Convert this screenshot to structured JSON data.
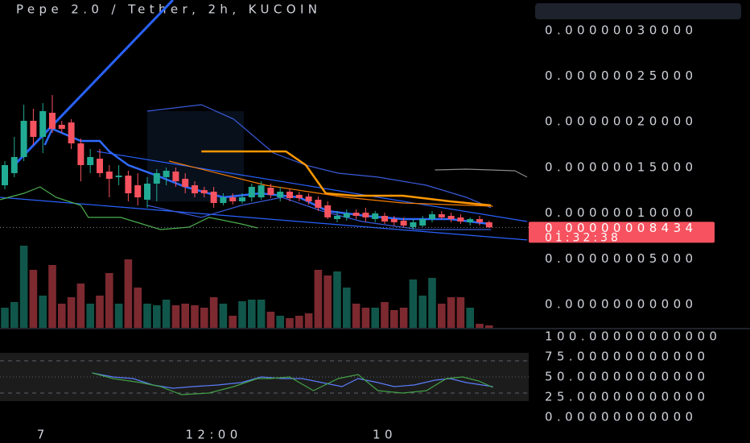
{
  "chart_data": [
    {
      "type": "candlestick",
      "title": "Pepe 2.0 / Tether, 2h, KUCOIN",
      "categories": [
        null,
        null,
        null,
        null,
        "7",
        null,
        null,
        null,
        null,
        null,
        null,
        null,
        null,
        null,
        null,
        null,
        null,
        null,
        null,
        null,
        null,
        null,
        "12:00",
        null,
        null,
        null,
        null,
        null,
        null,
        null,
        null,
        null,
        null,
        null,
        null,
        null,
        null,
        null,
        null,
        null,
        "10",
        null,
        null,
        null,
        null,
        null,
        null,
        null,
        null,
        null,
        null,
        null
      ],
      "open": [
        1.305e-07,
        1.438e-07,
        1.614e-07,
        2.011e-07,
        1.835e-07,
        2.099e-07,
        1.967e-07,
        1.993e-07,
        1.764e-07,
        1.526e-07,
        1.596e-07,
        1.455e-07,
        1.394e-07,
        1.411e-07,
        1.305e-07,
        1.147e-07,
        1.323e-07,
        1.394e-07,
        1.455e-07,
        1.376e-07,
        1.305e-07,
        1.252e-07,
        1.235e-07,
        1.111e-07,
        1.173e-07,
        1.129e-07,
        1.173e-07,
        1.173e-07,
        1.279e-07,
        1.173e-07,
        1.235e-07,
        1.2e-07,
        1.182e-07,
        1.147e-07,
        1.085e-07,
        9.35e-08,
        9.53e-08,
        1.005e-07,
        1.005e-07,
        9.35e-08,
        9.7e-08,
        9.35e-08,
        9.17e-08,
        8.47e-08,
        8.64e-08,
        9.35e-08,
        9.88e-08,
        9.7e-08,
        9.53e-08,
        9e-08,
        9.35e-08,
        9e-08
      ],
      "high": [
        1.57e-07,
        1.835e-07,
        2.187e-07,
        2.143e-07,
        2.205e-07,
        2.293e-07,
        2.011e-07,
        2.029e-07,
        1.817e-07,
        1.702e-07,
        1.702e-07,
        1.526e-07,
        1.526e-07,
        1.464e-07,
        1.438e-07,
        1.394e-07,
        1.482e-07,
        1.499e-07,
        1.499e-07,
        1.438e-07,
        1.349e-07,
        1.288e-07,
        1.288e-07,
        1.217e-07,
        1.217e-07,
        1.217e-07,
        1.323e-07,
        1.349e-07,
        1.323e-07,
        1.288e-07,
        1.27e-07,
        1.235e-07,
        1.217e-07,
        1.182e-07,
        1.129e-07,
        1.023e-07,
        1.041e-07,
        1.041e-07,
        1.058e-07,
        1.023e-07,
        1.005e-07,
        9.7e-08,
        9.53e-08,
        9.35e-08,
        9.7e-08,
        1.023e-07,
        1.023e-07,
        1.005e-07,
        9.88e-08,
        9.53e-08,
        9.7e-08,
        9.17e-08
      ],
      "low": [
        1.261e-07,
        1.394e-07,
        1.57e-07,
        1.746e-07,
        1.658e-07,
        1.879e-07,
        1.879e-07,
        1.702e-07,
        1.349e-07,
        1.438e-07,
        1.394e-07,
        1.173e-07,
        1.305e-07,
        1.129e-07,
        1.085e-07,
        1.058e-07,
        1.129e-07,
        1.305e-07,
        1.288e-07,
        1.217e-07,
        1.173e-07,
        1.173e-07,
        1.058e-07,
        1.085e-07,
        1.094e-07,
        1.103e-07,
        1.129e-07,
        1.147e-07,
        1.164e-07,
        1.129e-07,
        1.129e-07,
        1.129e-07,
        1.094e-07,
        1.023e-07,
        9.35e-08,
        9e-08,
        9.17e-08,
        9.35e-08,
        9.08e-08,
        9e-08,
        8.82e-08,
        8.64e-08,
        8.47e-08,
        8.2e-08,
        8.47e-08,
        9e-08,
        9.35e-08,
        9e-08,
        8.82e-08,
        8.64e-08,
        8.64e-08,
        8.38e-08
      ],
      "close": [
        1.526e-07,
        1.614e-07,
        2.011e-07,
        1.835e-07,
        2.117e-07,
        1.923e-07,
        1.923e-07,
        1.764e-07,
        1.526e-07,
        1.614e-07,
        1.438e-07,
        1.376e-07,
        1.411e-07,
        1.217e-07,
        1.173e-07,
        1.323e-07,
        1.438e-07,
        1.464e-07,
        1.349e-07,
        1.288e-07,
        1.217e-07,
        1.217e-07,
        1.111e-07,
        1.173e-07,
        1.129e-07,
        1.173e-07,
        1.288e-07,
        1.305e-07,
        1.2e-07,
        1.235e-07,
        1.164e-07,
        1.164e-07,
        1.129e-07,
        1.058e-07,
        9.53e-08,
        9.7e-08,
        9.97e-08,
        9.7e-08,
        9.53e-08,
        9.97e-08,
        9.08e-08,
        9e-08,
        8.64e-08,
        9e-08,
        9.35e-08,
        9.88e-08,
        9.53e-08,
        9.35e-08,
        9.08e-08,
        9.35e-08,
        9e-08,
        8.434e-08
      ],
      "volume": [
        25,
        32,
        102,
        72,
        40,
        78,
        30,
        38,
        55,
        30,
        40,
        68,
        30,
        85,
        50,
        30,
        28,
        35,
        28,
        30,
        28,
        25,
        38,
        30,
        15,
        33,
        35,
        35,
        20,
        15,
        12,
        15,
        18,
        72,
        65,
        70,
        50,
        30,
        25,
        25,
        32,
        22,
        25,
        60,
        40,
        62,
        30,
        38,
        38,
        25,
        5,
        3
      ],
      "up_color": "#22ab94",
      "down_color": "#f7525f",
      "ylim": [
        -2.56e-08,
        3.334e-07
      ],
      "yticks": [
        {
          "value": 3e-07,
          "label": "0.00000030000"
        },
        {
          "value": 2.5e-07,
          "label": "0.00000025000"
        },
        {
          "value": 2e-07,
          "label": "0.00000020000"
        },
        {
          "value": 1.5e-07,
          "label": "0.00000015000"
        },
        {
          "value": 1e-07,
          "label": "0.00000010000"
        },
        {
          "value": 5e-08,
          "label": "0.00000005000"
        },
        {
          "value": 0,
          "label": "0.00000000000"
        }
      ],
      "grid": false,
      "overlays": [
        {
          "color": "#2962ff",
          "width": 3,
          "x": [
            1,
            17.7
          ],
          "values": [
            1.526e-07,
            3.334e-07
          ]
        },
        {
          "color": "#2f6bff",
          "width": 2.5,
          "x": [
            4.2,
            5,
            8,
            10,
            11,
            13,
            16,
            19,
            23,
            26.9,
            31,
            34,
            38,
            41.9,
            46.9,
            51
          ],
          "values": [
            1.746e-07,
            1.923e-07,
            1.79e-07,
            1.79e-07,
            1.676e-07,
            1.526e-07,
            1.411e-07,
            1.288e-07,
            1.173e-07,
            1.217e-07,
            1.173e-07,
            1.023e-07,
            9.7e-08,
            9.35e-08,
            9.35e-08,
            8.82e-08
          ]
        },
        {
          "color": "#3a5bd9",
          "width": 1.2,
          "x": [
            15,
            20.7,
            24.1,
            28.3,
            31.7,
            35.1,
            39.3,
            44.4,
            48.6,
            51.2
          ],
          "values": [
            2.117e-07,
            2.187e-07,
            2.029e-07,
            1.658e-07,
            1.526e-07,
            1.438e-07,
            1.394e-07,
            1.305e-07,
            1.173e-07,
            1.058e-07
          ]
        },
        {
          "color": "#2962ff",
          "width": 1.2,
          "x": [
            -0.5,
            55
          ],
          "values": [
            1.173e-07,
            7.06e-08
          ]
        },
        {
          "color": "#2962ff",
          "width": 1.2,
          "x": [
            9.7,
            55
          ],
          "values": [
            1.676e-07,
            9.08e-08
          ]
        },
        {
          "color": "#3a5bd9",
          "width": 1.2,
          "x": [
            15,
            20.7,
            24.9,
            29.2,
            33.4,
            37.6,
            43.6,
            51.2
          ],
          "values": [
            1.085e-07,
            9.53e-08,
            1.085e-07,
            1.173e-07,
            1.023e-07,
            9.08e-08,
            8.2e-08,
            8.2e-08
          ]
        },
        {
          "color": "#ff9800",
          "width": 2.5,
          "x": [
            20.7,
            29.6,
            31.7,
            33.8,
            36.8,
            41.9,
            46.9,
            51.2
          ],
          "values": [
            1.676e-07,
            1.676e-07,
            1.526e-07,
            1.217e-07,
            1.191e-07,
            1.191e-07,
            1.129e-07,
            1.085e-07
          ]
        },
        {
          "color": "#f57c00",
          "width": 1.2,
          "x": [
            17.3,
            27.5,
            35.9,
            41.9,
            51.4
          ],
          "values": [
            1.57e-07,
            1.305e-07,
            1.173e-07,
            1.111e-07,
            1.076e-07
          ]
        },
        {
          "color": "#4caf50",
          "width": 1.2,
          "x": [
            -0.5,
            2,
            3.7,
            5.4,
            8,
            8.8,
            12.2,
            16.4,
            19.4,
            21.5,
            24.9,
            26.6
          ],
          "values": [
            1.147e-07,
            1.217e-07,
            1.288e-07,
            1.173e-07,
            1.085e-07,
            9.53e-08,
            9.53e-08,
            8.2e-08,
            8.47e-08,
            9.53e-08,
            8.82e-08,
            8.38e-08
          ]
        },
        {
          "color": "#8a8a8a",
          "width": 1.2,
          "x": [
            45.3,
            48.6,
            53.7,
            55
          ],
          "values": [
            1.473e-07,
            1.482e-07,
            1.464e-07,
            1.394e-07
          ]
        }
      ],
      "price_tag": {
        "value": 8.434e-08,
        "label": "0.00000008434",
        "countdown": "01:32:38",
        "color": "#f7525f"
      }
    },
    {
      "type": "line",
      "ylim": [
        -10,
        108
      ],
      "yticks": [
        {
          "value": 100,
          "label": "100.00000000000"
        },
        {
          "value": 75,
          "label": "75.00000000000"
        },
        {
          "value": 50,
          "label": "50.00000000000"
        },
        {
          "value": 25,
          "label": "25.00000000000"
        },
        {
          "value": 0,
          "label": "0.00000000000"
        }
      ],
      "band": [
        20,
        80
      ],
      "levels": [
        70,
        50,
        30
      ],
      "series": [
        {
          "color": "#5b7cfa",
          "x": [
            9.2,
            11.4,
            13.5,
            15.6,
            17.7,
            19.8,
            22.4,
            24.9,
            27,
            29.2,
            31.3,
            33.4,
            35.5,
            37.2,
            39.3,
            41,
            43.1,
            45.3,
            46.9,
            48.6,
            50.3,
            51.4
          ],
          "values": [
            55,
            50,
            48,
            40,
            36,
            38,
            40,
            43,
            50,
            48,
            48,
            43,
            38,
            48,
            43,
            38,
            40,
            46,
            48,
            43,
            40,
            38
          ]
        },
        {
          "color": "#43a047",
          "x": [
            9.2,
            11.4,
            14.3,
            16.4,
            18.6,
            21.5,
            24.1,
            26.6,
            27.9,
            30,
            32.5,
            35.1,
            37.2,
            39.3,
            41.9,
            44.4,
            46.5,
            48.2,
            49.9,
            51.4
          ],
          "values": [
            55,
            48,
            43,
            38,
            28,
            30,
            38,
            48,
            48,
            50,
            33,
            48,
            53,
            33,
            30,
            33,
            48,
            50,
            45,
            37
          ]
        }
      ]
    }
  ]
}
